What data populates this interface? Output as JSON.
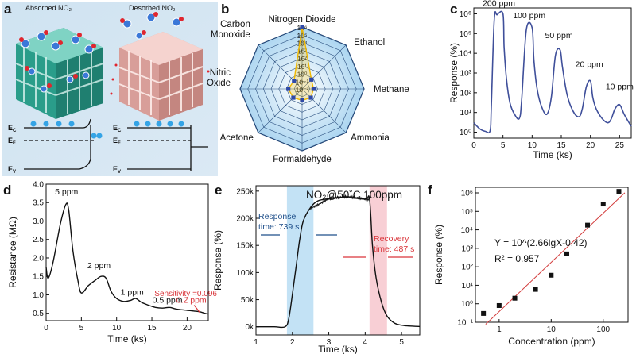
{
  "panel_labels": [
    "a",
    "b",
    "c",
    "d",
    "e",
    "f"
  ],
  "panel_a": {
    "left_title": "Absorbed NO₂",
    "right_title": "Desorbed NO₂",
    "band_labels": {
      "ec": "E",
      "ef": "E",
      "ev": "E",
      "ec_sub": "C",
      "ef_sub": "F",
      "ev_sub": "V"
    }
  },
  "chart_data": [
    {
      "panel": "b",
      "type": "radar",
      "axes": [
        "Nitrogen Dioxide",
        "Ethanol",
        "Methane",
        "Ammonia",
        "Formaldehyde",
        "Acetone",
        "Nitric Oxide",
        "Carbon Monoxide"
      ],
      "axis_lines": [
        [
          "Nitrogen Dioxide"
        ],
        [
          "Ethanol"
        ],
        [
          "Methane"
        ],
        [
          "Ammonia"
        ],
        [
          "Formaldehyde"
        ],
        [
          "Acetone"
        ],
        [
          "Nitric",
          "Oxide"
        ],
        [
          "Carbon",
          "Monoxide"
        ]
      ],
      "radial_ticks": [
        "10⁶",
        "10⁵",
        "10⁴",
        "10³",
        "10²",
        "10¹",
        "10⁰",
        "10⁻¹",
        "10⁻²"
      ],
      "radial_scale": "log",
      "rlim": [
        0.01,
        1000000
      ],
      "values": [
        1000000,
        0.5,
        0.3,
        0.4,
        0.3,
        0.4,
        0.6,
        0.3
      ]
    },
    {
      "panel": "c",
      "type": "line",
      "xlabel": "Time (ks)",
      "ylabel": "Response (%)",
      "yscale": "log",
      "xlim": [
        0,
        27
      ],
      "ylim": [
        0.5,
        2000000
      ],
      "xticks": [
        "0",
        "5",
        "10",
        "15",
        "20",
        "25"
      ],
      "yticks": [
        "10⁰",
        "10¹",
        "10²",
        "10³",
        "10⁴",
        "10⁵",
        "10⁶"
      ],
      "annotations": [
        "200 ppm",
        "100 ppm",
        "50 ppm",
        "20 ppm",
        "10 ppm"
      ],
      "x": [
        0,
        1,
        2,
        2.8,
        3.0,
        3.5,
        4.0,
        5.0,
        5.2,
        5.6,
        6.2,
        7,
        7.8,
        8.2,
        9.0,
        10.0,
        10.3,
        10.8,
        11.5,
        12.5,
        13.3,
        14.0,
        14.8,
        15.2,
        16.0,
        17.0,
        18.0,
        18.6,
        19.3,
        20.0,
        20.4,
        21.0,
        22.0,
        23.0,
        23.6,
        24.2,
        25.0,
        25.8,
        27
      ],
      "y": [
        3,
        1.5,
        1.1,
        1.2,
        20,
        500000,
        900000,
        1000000,
        20000,
        500,
        30,
        8,
        5,
        40,
        150000,
        200000,
        5000,
        200,
        25,
        8,
        60,
        8000,
        15000,
        2000,
        80,
        12,
        6,
        15,
        200,
        400,
        60,
        15,
        5,
        3,
        5,
        15,
        25,
        8,
        2
      ]
    },
    {
      "panel": "d",
      "type": "line",
      "xlabel": "Time (ks)",
      "ylabel": "Resistance (MΩ)",
      "xlim": [
        0,
        23
      ],
      "ylim": [
        0.3,
        4.0
      ],
      "xticks": [
        "0",
        "5",
        "10",
        "15",
        "20"
      ],
      "yticks": [
        "0.5",
        "1.0",
        "1.5",
        "2.0",
        "2.5",
        "3.0",
        "3.5",
        "4.0"
      ],
      "annotations": [
        "5 ppm",
        "2 ppm",
        "1 ppm",
        "0.5 ppm",
        "0.2 ppm"
      ],
      "sensitivity_note": "Sensitivity =0.096",
      "x": [
        0,
        0.3,
        1,
        2,
        2.8,
        3.2,
        3.8,
        4.5,
        5,
        6,
        7,
        7.8,
        8.5,
        9.2,
        10,
        11,
        12,
        12.7,
        13.5,
        14.5,
        15.5,
        16.5,
        17.5,
        18.3,
        19,
        20,
        21,
        21.8,
        22.5,
        23
      ],
      "y": [
        1.75,
        1.45,
        1.9,
        2.9,
        3.45,
        3.3,
        2.2,
        1.4,
        1.05,
        1.25,
        1.4,
        1.5,
        1.45,
        1.1,
        0.9,
        0.82,
        0.85,
        0.9,
        0.8,
        0.72,
        0.66,
        0.64,
        0.66,
        0.62,
        0.6,
        0.58,
        0.56,
        0.54,
        0.5,
        0.48
      ]
    },
    {
      "panel": "e",
      "type": "line",
      "title": "NO₂@50˚C 100ppm",
      "xlabel": "Time (ks)",
      "ylabel": "Response (%)",
      "xlim": [
        1,
        5.5
      ],
      "ylim": [
        -15000,
        260000
      ],
      "xticks": [
        "1",
        "2",
        "3",
        "4",
        "5"
      ],
      "yticks": [
        "0k",
        "50k",
        "100k",
        "150k",
        "200k",
        "250k"
      ],
      "response_note": [
        "Response",
        "time: 739 s"
      ],
      "recovery_note": [
        "Recovery",
        "time: 487 s"
      ],
      "response_band": [
        1.85,
        2.58
      ],
      "recovery_band": [
        4.12,
        4.6
      ],
      "x": [
        1.0,
        1.5,
        1.8,
        1.9,
        2.0,
        2.1,
        2.2,
        2.3,
        2.5,
        2.7,
        3.0,
        3.5,
        4.0,
        4.12,
        4.2,
        4.3,
        4.45,
        4.6,
        4.8,
        5.0,
        5.2,
        5.5
      ],
      "y": [
        0,
        0,
        0,
        15000,
        60000,
        110000,
        160000,
        195000,
        220000,
        232000,
        236000,
        238000,
        235000,
        235000,
        150000,
        90000,
        45000,
        20000,
        7000,
        3000,
        1500,
        500
      ]
    },
    {
      "panel": "f",
      "type": "scatter",
      "xlabel": "Concentration (ppm)",
      "ylabel": "Response (%)",
      "xscale": "log",
      "yscale": "log",
      "xlim": [
        0.35,
        300
      ],
      "ylim": [
        0.1,
        2000000
      ],
      "xticks": [
        "1",
        "10",
        "100"
      ],
      "yticks": [
        "10⁻¹",
        "10⁰",
        "10¹",
        "10²",
        "10³",
        "10⁴",
        "10⁵",
        "10⁶"
      ],
      "equation": "Y = 10^(2.66lgX-0.42)",
      "r2": "R² = 0.957",
      "fit": {
        "slope": 2.66,
        "intercept": -0.42
      },
      "x": [
        0.5,
        1,
        2,
        5,
        10,
        20,
        50,
        100,
        200
      ],
      "y": [
        0.3,
        0.8,
        2,
        6,
        35,
        500,
        18000,
        250000,
        1200000
      ]
    }
  ],
  "colors": {
    "line_c": "#3f4f9a",
    "fit_f": "#d33c3c",
    "resp_band": "#c3e2f5",
    "rec_band": "#f8cfd5",
    "radar_fill": "#b5dbf2",
    "radar_point": "#2f49a6",
    "radar_line": "#f0b800",
    "note_red": "#d9353a",
    "note_blue": "#1f4f8a"
  }
}
